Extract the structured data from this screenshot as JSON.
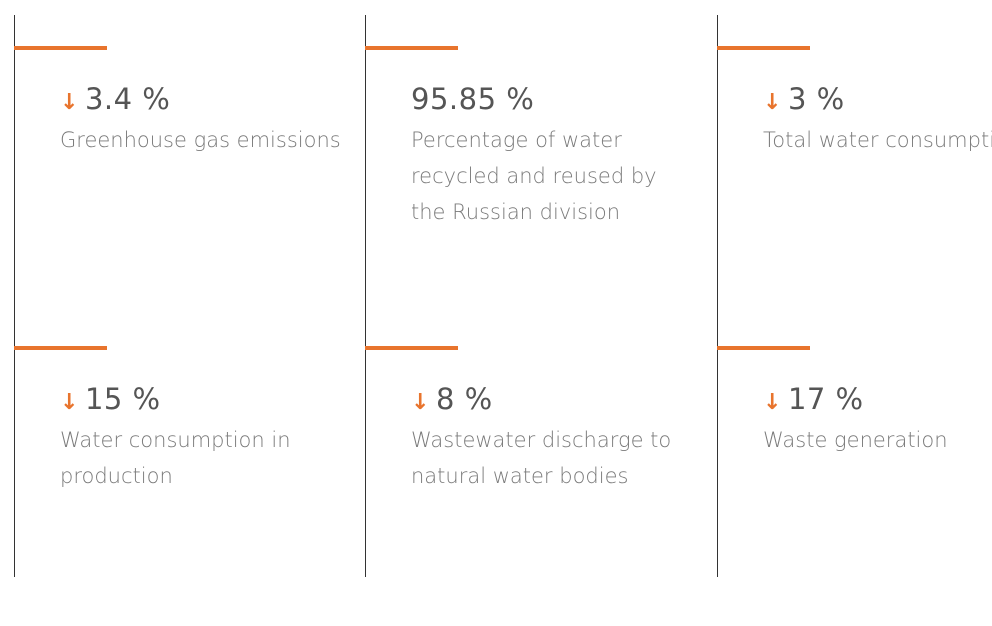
{
  "items": [
    {
      "arrow": "↓",
      "value": "3.4 %",
      "description": "Greenhouse gas emissions"
    },
    {
      "value": "95.85 %",
      "description": "Percentage of water recycled and reused by the Russian division"
    },
    {
      "arrow": "↓",
      "value": "3 %",
      "description": "Total water consumption"
    },
    {
      "arrow": "↓",
      "value": "15 %",
      "description": "Water consumption in production"
    },
    {
      "arrow": "↓",
      "value": "8 %",
      "description": "Wastewater discharge to natural water bodies"
    },
    {
      "arrow": "↓",
      "value": "17 %",
      "description": "Waste generation"
    }
  ]
}
